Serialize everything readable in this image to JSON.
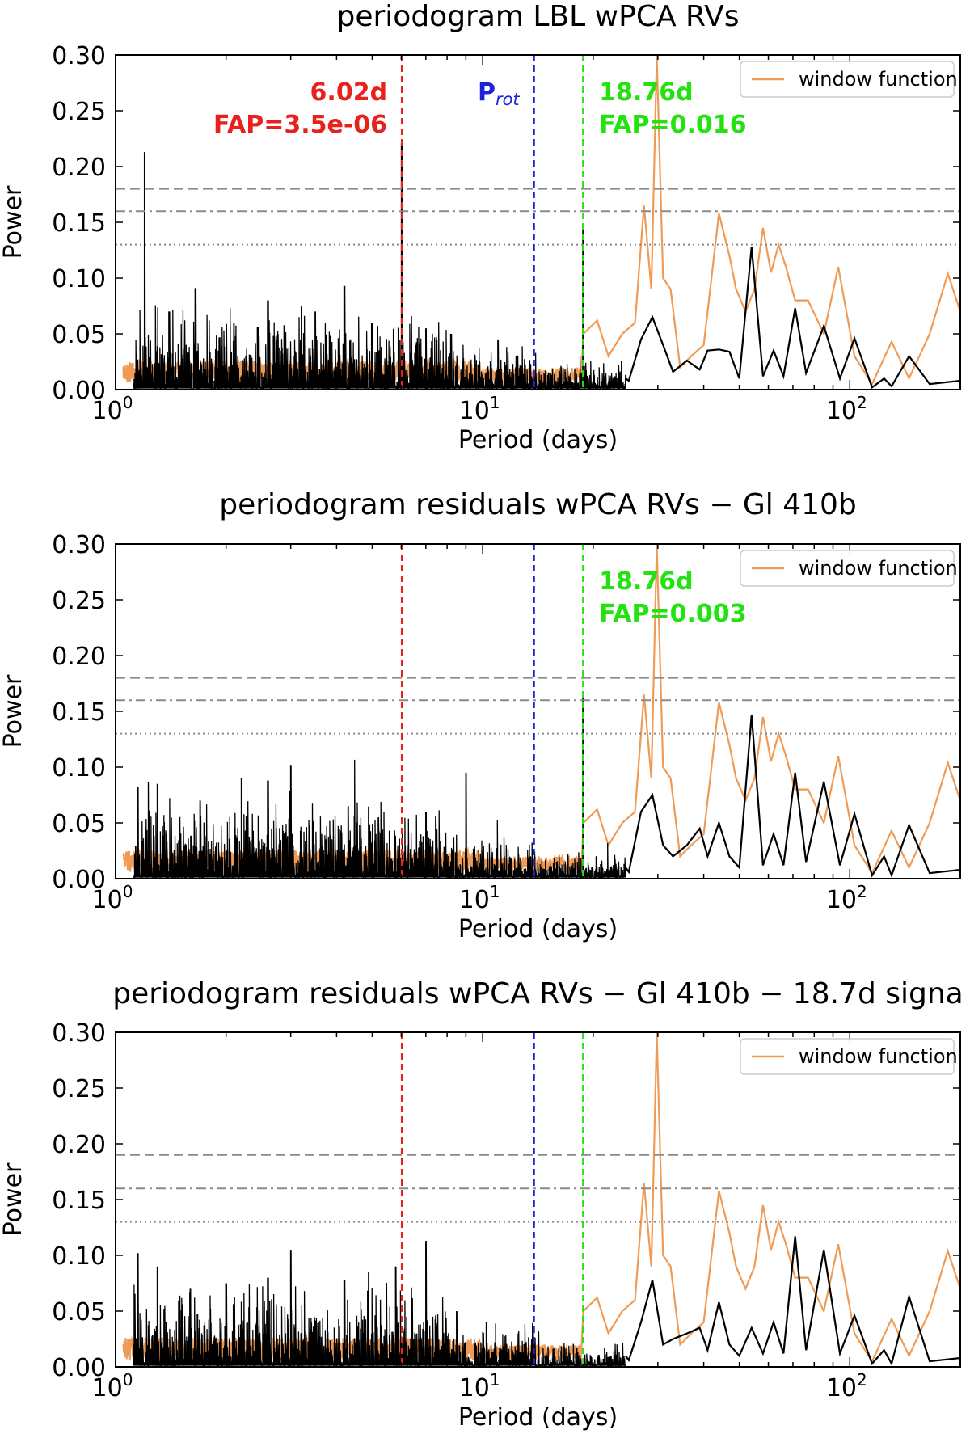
{
  "colors": {
    "data": "#000000",
    "window": "#ef9b55",
    "red": "#e8211c",
    "blue": "#1d24d8",
    "green": "#22e20f",
    "threshold": "#8a8a8a"
  },
  "chart_data": [
    {
      "type": "line",
      "title": "periodogram LBL wPCA RVs",
      "xlabel": "Period (days)",
      "ylabel": "Power",
      "xscale": "log",
      "xlim": [
        1.0,
        200
      ],
      "ylim": [
        0.0,
        0.3
      ],
      "yticks": [
        "0.00",
        "0.05",
        "0.10",
        "0.15",
        "0.20",
        "0.25",
        "0.30"
      ],
      "xticks": [
        {
          "base": "10",
          "exp": "0"
        },
        {
          "base": "10",
          "exp": "1"
        },
        {
          "base": "10",
          "exp": "2"
        }
      ],
      "legend": {
        "label": "window function",
        "placement": "top-right"
      },
      "fap_levels": [
        {
          "power": 0.18,
          "style": "dashed"
        },
        {
          "power": 0.16,
          "style": "dashdot"
        },
        {
          "power": 0.13,
          "style": "dotted"
        }
      ],
      "vlines": [
        {
          "period": 6.02,
          "color": "red"
        },
        {
          "period": 13.8,
          "color": "blue"
        },
        {
          "period": 18.76,
          "color": "green"
        }
      ],
      "annotations": [
        {
          "line1": "6.02d",
          "line2": "FAP=3.5e-06",
          "color": "red",
          "period": 6.02,
          "align": "left"
        },
        {
          "prot": "P",
          "prot_sub": "rot",
          "color": "blue",
          "period": 13.8,
          "align": "left"
        },
        {
          "line1": "18.76d",
          "line2": "FAP=0.016",
          "color": "green",
          "period": 18.76,
          "align": "right"
        }
      ],
      "signal_peaks": [
        [
          1.2,
          0.213
        ],
        [
          6.02,
          0.221
        ],
        [
          18.76,
          0.145
        ],
        [
          4.2,
          0.093
        ],
        [
          1.65,
          0.091
        ],
        [
          2.6,
          0.08
        ],
        [
          3.5,
          0.07
        ],
        [
          8.2,
          0.05
        ],
        [
          11.0,
          0.045
        ],
        [
          1.4,
          0.07
        ],
        [
          2.1,
          0.06
        ],
        [
          5.0,
          0.06
        ],
        [
          7.0,
          0.055
        ]
      ],
      "signal_smooth": [
        [
          25.0,
          0.008
        ],
        [
          27.0,
          0.045
        ],
        [
          29.0,
          0.065
        ],
        [
          31.0,
          0.04
        ],
        [
          33.0,
          0.016
        ],
        [
          36.0,
          0.026
        ],
        [
          39.0,
          0.018
        ],
        [
          41.0,
          0.035
        ],
        [
          44.0,
          0.036
        ],
        [
          47.0,
          0.034
        ],
        [
          50.0,
          0.01
        ],
        [
          54.0,
          0.128
        ],
        [
          58.0,
          0.012
        ],
        [
          62.0,
          0.035
        ],
        [
          66.0,
          0.012
        ],
        [
          71.0,
          0.073
        ],
        [
          76.0,
          0.015
        ],
        [
          85.0,
          0.057
        ],
        [
          94.0,
          0.01
        ],
        [
          103.0,
          0.046
        ],
        [
          115.0,
          0.002
        ],
        [
          124.0,
          0.01
        ],
        [
          130.0,
          0.003
        ],
        [
          145.0,
          0.03
        ],
        [
          165.0,
          0.005
        ],
        [
          200.0,
          0.008
        ]
      ],
      "window_smooth": [
        [
          18.8,
          0.05
        ],
        [
          20.5,
          0.062
        ],
        [
          22.0,
          0.03
        ],
        [
          24.0,
          0.05
        ],
        [
          26.0,
          0.06
        ],
        [
          27.5,
          0.165
        ],
        [
          28.8,
          0.09
        ],
        [
          29.8,
          0.3
        ],
        [
          31.0,
          0.1
        ],
        [
          32.5,
          0.09
        ],
        [
          34.5,
          0.02
        ],
        [
          37.0,
          0.03
        ],
        [
          40.0,
          0.04
        ],
        [
          44.0,
          0.158
        ],
        [
          47.0,
          0.12
        ],
        [
          49.0,
          0.09
        ],
        [
          52.0,
          0.07
        ],
        [
          55.0,
          0.09
        ],
        [
          58.0,
          0.145
        ],
        [
          61.0,
          0.105
        ],
        [
          64.0,
          0.13
        ],
        [
          67.0,
          0.11
        ],
        [
          71.0,
          0.08
        ],
        [
          77.0,
          0.08
        ],
        [
          85.0,
          0.05
        ],
        [
          93.0,
          0.11
        ],
        [
          103.0,
          0.03
        ],
        [
          115.0,
          0.005
        ],
        [
          130.0,
          0.043
        ],
        [
          145.0,
          0.01
        ],
        [
          165.0,
          0.05
        ],
        [
          185.0,
          0.104
        ],
        [
          200.0,
          0.07
        ]
      ]
    },
    {
      "type": "line",
      "title": "periodogram residuals wPCA RVs − Gl 410b",
      "xlabel": "Period (days)",
      "ylabel": "Power",
      "xscale": "log",
      "xlim": [
        1.0,
        200
      ],
      "ylim": [
        0.0,
        0.3
      ],
      "yticks": [
        "0.00",
        "0.05",
        "0.10",
        "0.15",
        "0.20",
        "0.25",
        "0.30"
      ],
      "xticks": [
        {
          "base": "10",
          "exp": "0"
        },
        {
          "base": "10",
          "exp": "1"
        },
        {
          "base": "10",
          "exp": "2"
        }
      ],
      "legend": {
        "label": "window function",
        "placement": "top-right"
      },
      "fap_levels": [
        {
          "power": 0.18,
          "style": "dashed"
        },
        {
          "power": 0.16,
          "style": "dashdot"
        },
        {
          "power": 0.13,
          "style": "dotted"
        }
      ],
      "vlines": [
        {
          "period": 6.02,
          "color": "red"
        },
        {
          "period": 13.8,
          "color": "blue"
        },
        {
          "period": 18.76,
          "color": "green"
        }
      ],
      "annotations": [
        {
          "line1": "18.76d",
          "line2": "FAP=0.003",
          "color": "green",
          "period": 18.76,
          "align": "right"
        }
      ],
      "signal_peaks": [
        [
          18.76,
          0.163
        ],
        [
          3.0,
          0.102
        ],
        [
          9.0,
          0.095
        ],
        [
          2.2,
          0.09
        ],
        [
          1.15,
          0.082
        ],
        [
          1.3,
          0.085
        ],
        [
          2.6,
          0.088
        ],
        [
          4.3,
          0.065
        ],
        [
          7.0,
          0.06
        ],
        [
          1.7,
          0.07
        ],
        [
          5.2,
          0.055
        ]
      ],
      "signal_smooth": [
        [
          25.0,
          0.006
        ],
        [
          27.0,
          0.06
        ],
        [
          29.0,
          0.075
        ],
        [
          31.0,
          0.03
        ],
        [
          33.0,
          0.02
        ],
        [
          36.0,
          0.03
        ],
        [
          39.0,
          0.045
        ],
        [
          41.0,
          0.02
        ],
        [
          44.0,
          0.05
        ],
        [
          47.0,
          0.02
        ],
        [
          50.0,
          0.01
        ],
        [
          54.0,
          0.147
        ],
        [
          58.0,
          0.012
        ],
        [
          62.0,
          0.04
        ],
        [
          66.0,
          0.012
        ],
        [
          71.0,
          0.095
        ],
        [
          76.0,
          0.015
        ],
        [
          85.0,
          0.087
        ],
        [
          94.0,
          0.012
        ],
        [
          103.0,
          0.058
        ],
        [
          115.0,
          0.003
        ],
        [
          124.0,
          0.02
        ],
        [
          130.0,
          0.003
        ],
        [
          145.0,
          0.048
        ],
        [
          165.0,
          0.005
        ],
        [
          200.0,
          0.008
        ]
      ],
      "window_smooth": [
        [
          18.8,
          0.05
        ],
        [
          20.5,
          0.062
        ],
        [
          22.0,
          0.03
        ],
        [
          24.0,
          0.05
        ],
        [
          26.0,
          0.06
        ],
        [
          27.5,
          0.165
        ],
        [
          28.8,
          0.09
        ],
        [
          29.8,
          0.3
        ],
        [
          31.0,
          0.1
        ],
        [
          32.5,
          0.09
        ],
        [
          34.5,
          0.02
        ],
        [
          37.0,
          0.03
        ],
        [
          40.0,
          0.04
        ],
        [
          44.0,
          0.158
        ],
        [
          47.0,
          0.12
        ],
        [
          49.0,
          0.09
        ],
        [
          52.0,
          0.07
        ],
        [
          55.0,
          0.09
        ],
        [
          58.0,
          0.145
        ],
        [
          61.0,
          0.105
        ],
        [
          64.0,
          0.13
        ],
        [
          67.0,
          0.11
        ],
        [
          71.0,
          0.08
        ],
        [
          77.0,
          0.08
        ],
        [
          85.0,
          0.05
        ],
        [
          93.0,
          0.11
        ],
        [
          103.0,
          0.03
        ],
        [
          115.0,
          0.005
        ],
        [
          130.0,
          0.043
        ],
        [
          145.0,
          0.01
        ],
        [
          165.0,
          0.05
        ],
        [
          185.0,
          0.104
        ],
        [
          200.0,
          0.07
        ]
      ]
    },
    {
      "type": "line",
      "title": "periodogram residuals wPCA RVs − Gl 410b − 18.7d signa",
      "xlabel": "Period (days)",
      "ylabel": "Power",
      "xscale": "log",
      "xlim": [
        1.0,
        200
      ],
      "ylim": [
        0.0,
        0.3
      ],
      "yticks": [
        "0.00",
        "0.05",
        "0.10",
        "0.15",
        "0.20",
        "0.25",
        "0.30"
      ],
      "xticks": [
        {
          "base": "10",
          "exp": "0"
        },
        {
          "base": "10",
          "exp": "1"
        },
        {
          "base": "10",
          "exp": "2"
        }
      ],
      "legend": {
        "label": "window function",
        "placement": "top-right"
      },
      "fap_levels": [
        {
          "power": 0.19,
          "style": "dashed"
        },
        {
          "power": 0.16,
          "style": "dashdot"
        },
        {
          "power": 0.13,
          "style": "dotted"
        }
      ],
      "vlines": [
        {
          "period": 6.02,
          "color": "red"
        },
        {
          "period": 13.8,
          "color": "blue"
        },
        {
          "period": 18.76,
          "color": "green"
        }
      ],
      "annotations": [],
      "signal_peaks": [
        [
          3.0,
          0.105
        ],
        [
          7.0,
          0.113
        ],
        [
          1.15,
          0.102
        ],
        [
          2.6,
          0.08
        ],
        [
          4.2,
          0.078
        ],
        [
          5.8,
          0.09
        ],
        [
          1.3,
          0.09
        ],
        [
          2.0,
          0.075
        ],
        [
          1.6,
          0.07
        ],
        [
          8.5,
          0.05
        ]
      ],
      "signal_smooth": [
        [
          25.0,
          0.006
        ],
        [
          27.0,
          0.04
        ],
        [
          29.0,
          0.078
        ],
        [
          31.0,
          0.02
        ],
        [
          33.0,
          0.025
        ],
        [
          36.0,
          0.03
        ],
        [
          39.0,
          0.035
        ],
        [
          41.0,
          0.015
        ],
        [
          44.0,
          0.058
        ],
        [
          47.0,
          0.02
        ],
        [
          50.0,
          0.01
        ],
        [
          54.0,
          0.035
        ],
        [
          58.0,
          0.012
        ],
        [
          62.0,
          0.04
        ],
        [
          66.0,
          0.012
        ],
        [
          71.0,
          0.117
        ],
        [
          76.0,
          0.015
        ],
        [
          85.0,
          0.105
        ],
        [
          94.0,
          0.012
        ],
        [
          103.0,
          0.046
        ],
        [
          115.0,
          0.003
        ],
        [
          124.0,
          0.015
        ],
        [
          130.0,
          0.003
        ],
        [
          145.0,
          0.063
        ],
        [
          165.0,
          0.005
        ],
        [
          200.0,
          0.008
        ]
      ],
      "window_smooth": [
        [
          18.8,
          0.05
        ],
        [
          20.5,
          0.062
        ],
        [
          22.0,
          0.03
        ],
        [
          24.0,
          0.05
        ],
        [
          26.0,
          0.06
        ],
        [
          27.5,
          0.165
        ],
        [
          28.8,
          0.09
        ],
        [
          29.8,
          0.3
        ],
        [
          31.0,
          0.1
        ],
        [
          32.5,
          0.09
        ],
        [
          34.5,
          0.02
        ],
        [
          37.0,
          0.03
        ],
        [
          40.0,
          0.04
        ],
        [
          44.0,
          0.158
        ],
        [
          47.0,
          0.12
        ],
        [
          49.0,
          0.09
        ],
        [
          52.0,
          0.07
        ],
        [
          55.0,
          0.09
        ],
        [
          58.0,
          0.145
        ],
        [
          61.0,
          0.105
        ],
        [
          64.0,
          0.13
        ],
        [
          67.0,
          0.11
        ],
        [
          71.0,
          0.08
        ],
        [
          77.0,
          0.08
        ],
        [
          85.0,
          0.05
        ],
        [
          93.0,
          0.11
        ],
        [
          103.0,
          0.03
        ],
        [
          115.0,
          0.005
        ],
        [
          130.0,
          0.043
        ],
        [
          145.0,
          0.01
        ],
        [
          165.0,
          0.05
        ],
        [
          185.0,
          0.104
        ],
        [
          200.0,
          0.07
        ]
      ]
    }
  ]
}
